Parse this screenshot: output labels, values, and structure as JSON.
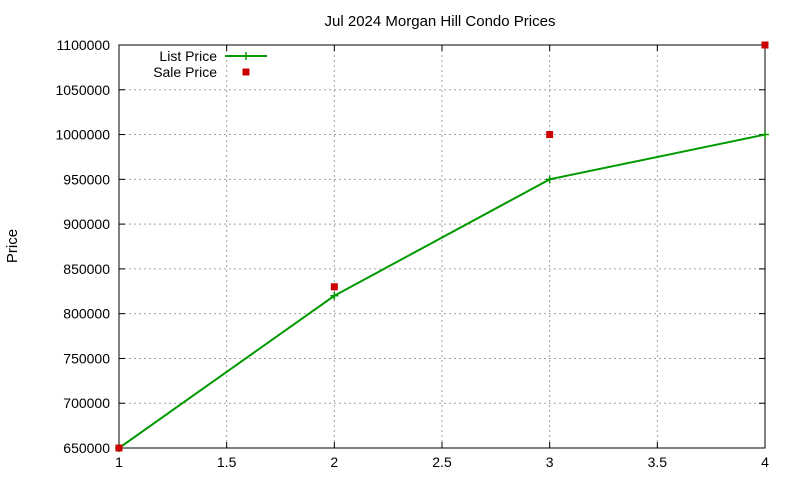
{
  "chart_data": {
    "type": "line",
    "title": "Jul 2024 Morgan Hill Condo Prices",
    "xlabel": "",
    "ylabel": "Price",
    "xlim": [
      1,
      4
    ],
    "ylim": [
      650000,
      1100000
    ],
    "x_ticks": [
      "1",
      "1.5",
      "2",
      "2.5",
      "3",
      "3.5",
      "4"
    ],
    "y_ticks": [
      "650000",
      "700000",
      "750000",
      "800000",
      "850000",
      "900000",
      "950000",
      "1000000",
      "1050000",
      "1100000"
    ],
    "grid": true,
    "legend_position": "top-left",
    "series": [
      {
        "name": "List Price",
        "style": "line+points",
        "marker": "plus",
        "color": "#009900",
        "x": [
          1,
          2,
          3,
          4
        ],
        "y": [
          650000,
          820000,
          950000,
          1000000
        ]
      },
      {
        "name": "Sale Price",
        "style": "points",
        "marker": "square",
        "color": "#cc0000",
        "x": [
          1,
          2,
          3,
          4
        ],
        "y": [
          650000,
          830000,
          1000000,
          1100000
        ]
      }
    ]
  }
}
